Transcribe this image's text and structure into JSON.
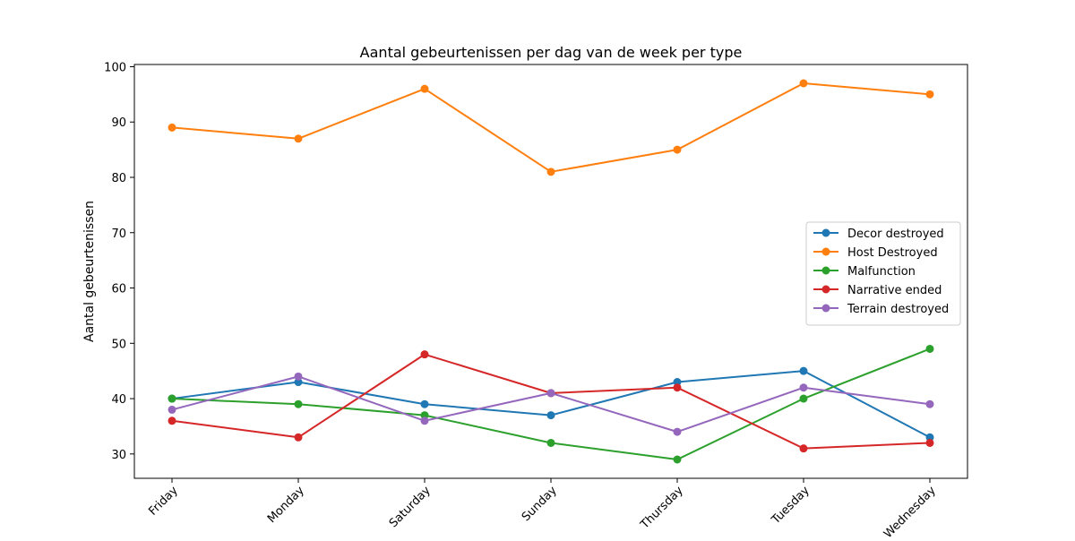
{
  "chart_data": {
    "type": "line",
    "title": "Aantal gebeurtenissen per dag van de week per type",
    "xlabel": "",
    "ylabel": "Aantal gebeurtenissen",
    "categories": [
      "Friday",
      "Monday",
      "Saturday",
      "Sunday",
      "Thursday",
      "Tuesday",
      "Wednesday"
    ],
    "ylim": [
      25.6,
      100.4
    ],
    "yticks": [
      30,
      40,
      50,
      60,
      70,
      80,
      90,
      100
    ],
    "grid": false,
    "legend_position": "center-right",
    "series": [
      {
        "name": "Decor destroyed",
        "color": "#1f77b4",
        "values": [
          40,
          43,
          39,
          37,
          43,
          45,
          33
        ]
      },
      {
        "name": "Host Destroyed",
        "color": "#ff7f0e",
        "values": [
          89,
          87,
          96,
          81,
          85,
          97,
          95
        ]
      },
      {
        "name": "Malfunction",
        "color": "#2ca02c",
        "values": [
          40,
          39,
          37,
          32,
          29,
          40,
          49
        ]
      },
      {
        "name": "Narrative ended",
        "color": "#d62728",
        "values": [
          36,
          33,
          48,
          41,
          42,
          31,
          32
        ]
      },
      {
        "name": "Terrain destroyed",
        "color": "#9467bd",
        "values": [
          38,
          44,
          36,
          41,
          34,
          42,
          39
        ]
      }
    ]
  }
}
